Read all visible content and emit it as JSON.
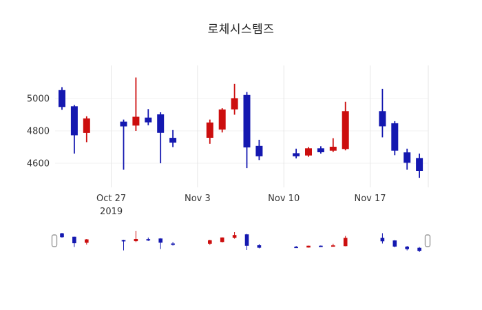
{
  "chart_data": {
    "type": "candlestick",
    "title": "로체시스템즈",
    "increasing_color": "#cc0e0e",
    "decreasing_color": "#1418b0",
    "background": "#ffffff",
    "grid": true,
    "ylim": [
      4450,
      5200
    ],
    "yticks": [
      5000,
      4800,
      4600
    ],
    "xticks": [
      {
        "label": "Oct 27",
        "sub": "2019",
        "day": 4
      },
      {
        "label": "Nov 3",
        "sub": "",
        "day": 11
      },
      {
        "label": "Nov 10",
        "sub": "",
        "day": 18
      },
      {
        "label": "Nov 17",
        "sub": "",
        "day": 25
      }
    ],
    "rangeslider": true,
    "candles": [
      {
        "date": "Oct 23",
        "day": 0,
        "open": 5050,
        "high": 5070,
        "low": 4930,
        "close": 4950
      },
      {
        "date": "Oct 24",
        "day": 1,
        "open": 4950,
        "high": 4960,
        "low": 4660,
        "close": 4775
      },
      {
        "date": "Oct 25",
        "day": 2,
        "open": 4790,
        "high": 4890,
        "low": 4730,
        "close": 4875
      },
      {
        "date": "Oct 28",
        "day": 5,
        "open": 4855,
        "high": 4870,
        "low": 4560,
        "close": 4830
      },
      {
        "date": "Oct 29",
        "day": 6,
        "open": 4835,
        "high": 5130,
        "low": 4800,
        "close": 4885
      },
      {
        "date": "Oct 30",
        "day": 7,
        "open": 4880,
        "high": 4935,
        "low": 4835,
        "close": 4855
      },
      {
        "date": "Oct 31",
        "day": 8,
        "open": 4900,
        "high": 4915,
        "low": 4600,
        "close": 4790
      },
      {
        "date": "Nov 1",
        "day": 9,
        "open": 4755,
        "high": 4805,
        "low": 4700,
        "close": 4730
      },
      {
        "date": "Nov 4",
        "day": 12,
        "open": 4760,
        "high": 4870,
        "low": 4720,
        "close": 4850
      },
      {
        "date": "Nov 5",
        "day": 13,
        "open": 4810,
        "high": 4940,
        "low": 4790,
        "close": 4930
      },
      {
        "date": "Nov 6",
        "day": 14,
        "open": 4935,
        "high": 5090,
        "low": 4900,
        "close": 5000
      },
      {
        "date": "Nov 7",
        "day": 15,
        "open": 5020,
        "high": 5040,
        "low": 4570,
        "close": 4700
      },
      {
        "date": "Nov 8",
        "day": 16,
        "open": 4705,
        "high": 4745,
        "low": 4620,
        "close": 4645
      },
      {
        "date": "Nov 11",
        "day": 19,
        "open": 4660,
        "high": 4690,
        "low": 4630,
        "close": 4645
      },
      {
        "date": "Nov 12",
        "day": 20,
        "open": 4650,
        "high": 4700,
        "low": 4640,
        "close": 4690
      },
      {
        "date": "Nov 13",
        "day": 21,
        "open": 4690,
        "high": 4705,
        "low": 4660,
        "close": 4670
      },
      {
        "date": "Nov 14",
        "day": 22,
        "open": 4680,
        "high": 4755,
        "low": 4670,
        "close": 4700
      },
      {
        "date": "Nov 15",
        "day": 23,
        "open": 4690,
        "high": 4980,
        "low": 4680,
        "close": 4920
      },
      {
        "date": "Nov 18",
        "day": 26,
        "open": 4920,
        "high": 5060,
        "low": 4760,
        "close": 4830
      },
      {
        "date": "Nov 19",
        "day": 27,
        "open": 4845,
        "high": 4860,
        "low": 4650,
        "close": 4680
      },
      {
        "date": "Nov 20",
        "day": 28,
        "open": 4665,
        "high": 4690,
        "low": 4560,
        "close": 4605
      },
      {
        "date": "Nov 21",
        "day": 29,
        "open": 4630,
        "high": 4660,
        "low": 4510,
        "close": 4555
      }
    ]
  }
}
